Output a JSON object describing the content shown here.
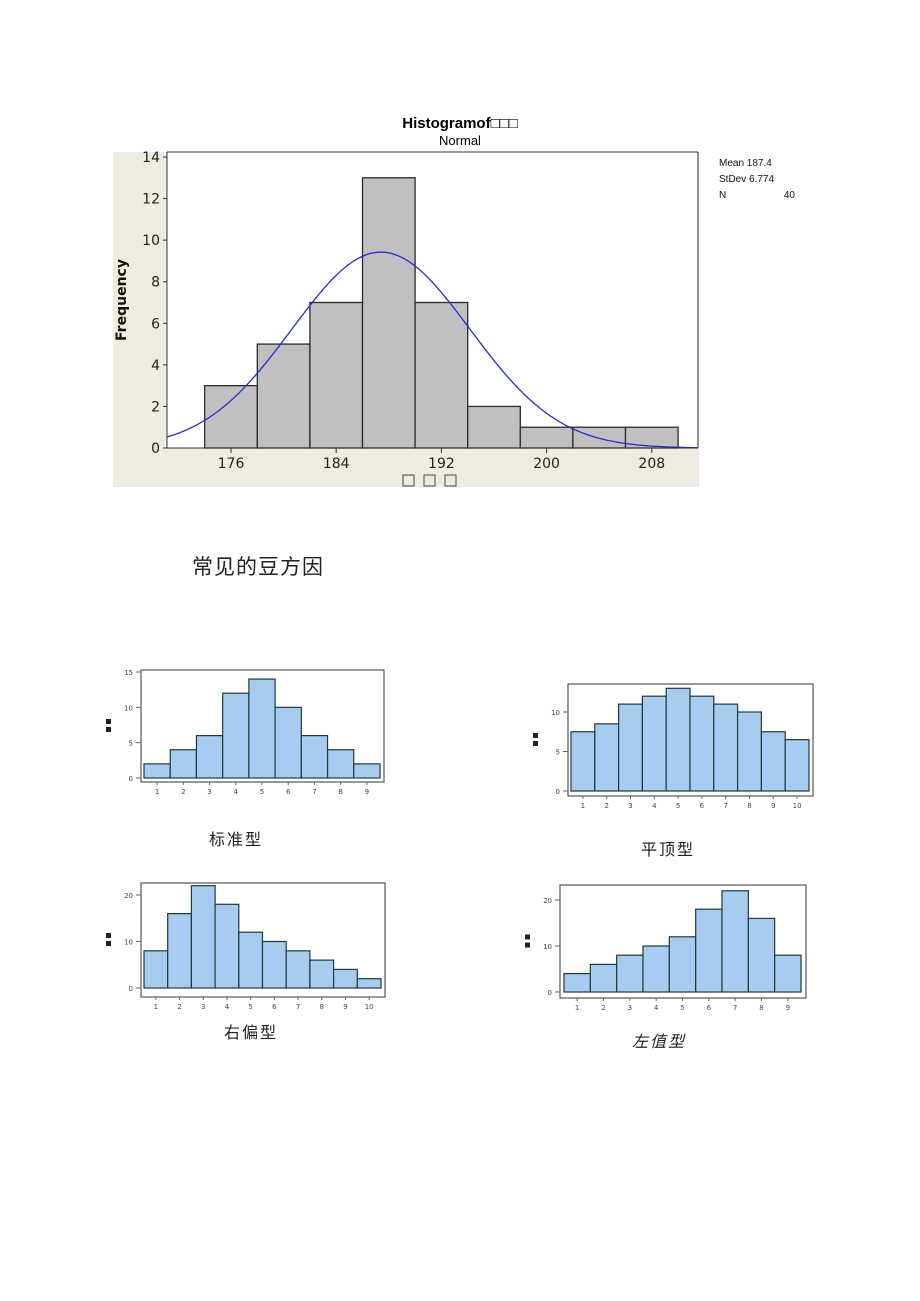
{
  "main_histogram": {
    "title": "Histogramof□□□",
    "subtitle": "Normal",
    "ylabel": "Frequency",
    "xlabel": "□ □ □",
    "stats": {
      "mean_label": "Mean",
      "mean_value": "187.4",
      "stdev_label": "StDev",
      "stdev_value": "6.774",
      "n_label": "N",
      "n_value": "40"
    }
  },
  "section_heading": "常见的豆方因",
  "captions": {
    "standard": "标准型",
    "flat_top": "平顶型",
    "right_skew": "右偏型",
    "left_skew": "左值型"
  },
  "colors": {
    "main_bar_fill": "#c0c0c0",
    "main_bar_stroke": "#2b2b2b",
    "normal_curve": "#2a2ad0",
    "chart_background": "#eeebe3",
    "small_bar_fill": "#a8cbf0",
    "small_bar_stroke": "#1f3a3a"
  },
  "chart_data": [
    {
      "type": "bar",
      "title": "Histogramof□□□",
      "subtitle": "Normal",
      "xlabel": "□ □ □",
      "ylabel": "Frequency",
      "bin_edges": [
        174,
        178,
        182,
        186,
        190,
        194,
        198,
        202,
        206,
        210
      ],
      "values": [
        3,
        5,
        7,
        13,
        7,
        2,
        1,
        1,
        1
      ],
      "x_ticks": [
        176,
        184,
        192,
        200,
        208
      ],
      "y_ticks": [
        0,
        2,
        4,
        6,
        8,
        10,
        12,
        14
      ],
      "ylim": [
        0,
        14
      ],
      "xlim": [
        169,
        209.5
      ],
      "overlay": {
        "type": "normal_curve",
        "mean": 187.4,
        "stdev": 6.774,
        "n": 40,
        "bin_width": 4
      },
      "legend": [
        "Mean 187.4",
        "StDev 6.774",
        "N 40"
      ],
      "legend_position": "right",
      "grid": false
    },
    {
      "type": "bar",
      "title": "标准型",
      "ylabel": "频率",
      "categories": [
        "1",
        "2",
        "3",
        "4",
        "5",
        "6",
        "7",
        "8",
        "9"
      ],
      "values": [
        2,
        4,
        6,
        12,
        14,
        10,
        6,
        4,
        2
      ],
      "y_ticks": [
        0,
        5,
        10,
        15
      ],
      "ylim": [
        0,
        15
      ],
      "grid": false
    },
    {
      "type": "bar",
      "title": "平顶型",
      "ylabel": "频率",
      "categories": [
        "1",
        "2",
        "3",
        "4",
        "5",
        "6",
        "7",
        "8",
        "9",
        "10"
      ],
      "values": [
        7.5,
        8.5,
        11,
        12,
        13,
        12,
        11,
        10,
        7.5,
        6.5
      ],
      "y_ticks": [
        0,
        5,
        10
      ],
      "ylim": [
        0,
        13.5
      ],
      "grid": false
    },
    {
      "type": "bar",
      "title": "右偏型",
      "ylabel": "频率",
      "categories": [
        "1",
        "2",
        "3",
        "4",
        "5",
        "6",
        "7",
        "8",
        "9",
        "10"
      ],
      "values": [
        8,
        16,
        22,
        18,
        12,
        10,
        8,
        6,
        4,
        2
      ],
      "y_ticks": [
        0,
        10,
        20
      ],
      "ylim": [
        0,
        23
      ],
      "grid": false
    },
    {
      "type": "bar",
      "title": "左值型",
      "ylabel": "频率",
      "categories": [
        "1",
        "2",
        "3",
        "4",
        "5",
        "6",
        "7",
        "8",
        "9"
      ],
      "values": [
        4,
        6,
        8,
        10,
        12,
        18,
        22,
        16,
        8
      ],
      "y_ticks": [
        0,
        10,
        20
      ],
      "ylim": [
        0,
        23
      ],
      "grid": false
    }
  ]
}
